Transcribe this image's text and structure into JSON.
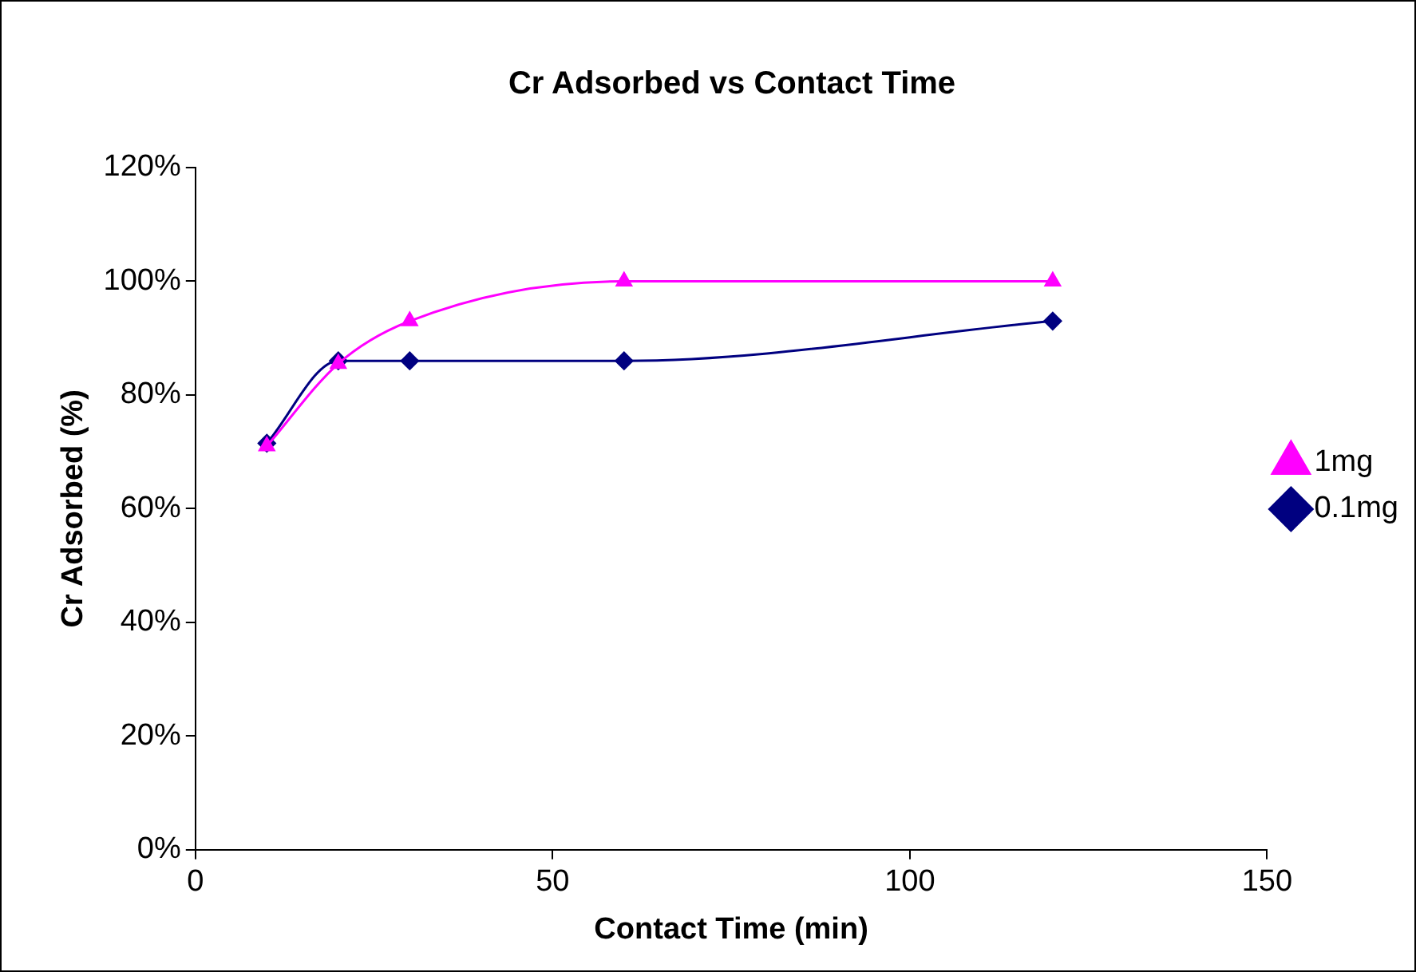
{
  "chart_data": {
    "type": "line",
    "title": "Cr Adsorbed vs Contact Time",
    "xlabel": "Contact Time (min)",
    "ylabel": "Cr Adsorbed (%)",
    "x": [
      10,
      20,
      30,
      60,
      120
    ],
    "series": [
      {
        "name": "0.1mg",
        "color": "#000080",
        "marker": "diamond",
        "values": [
          71.5,
          86,
          86,
          86,
          93
        ]
      },
      {
        "name": "1mg",
        "color": "#ff00ff",
        "marker": "triangle",
        "values": [
          71,
          85.5,
          93,
          100,
          100
        ]
      }
    ],
    "xlim": [
      0,
      150
    ],
    "xticks": [
      0,
      50,
      100,
      150
    ],
    "ylim": [
      0,
      120
    ],
    "yticks": [
      {
        "value": 0,
        "label": "0%"
      },
      {
        "value": 20,
        "label": "20%"
      },
      {
        "value": 40,
        "label": "40%"
      },
      {
        "value": 60,
        "label": "60%"
      },
      {
        "value": 80,
        "label": "80%"
      },
      {
        "value": 100,
        "label": "100%"
      },
      {
        "value": 120,
        "label": "120%"
      }
    ],
    "grid": false,
    "legend": "right",
    "line_style": "solid"
  }
}
